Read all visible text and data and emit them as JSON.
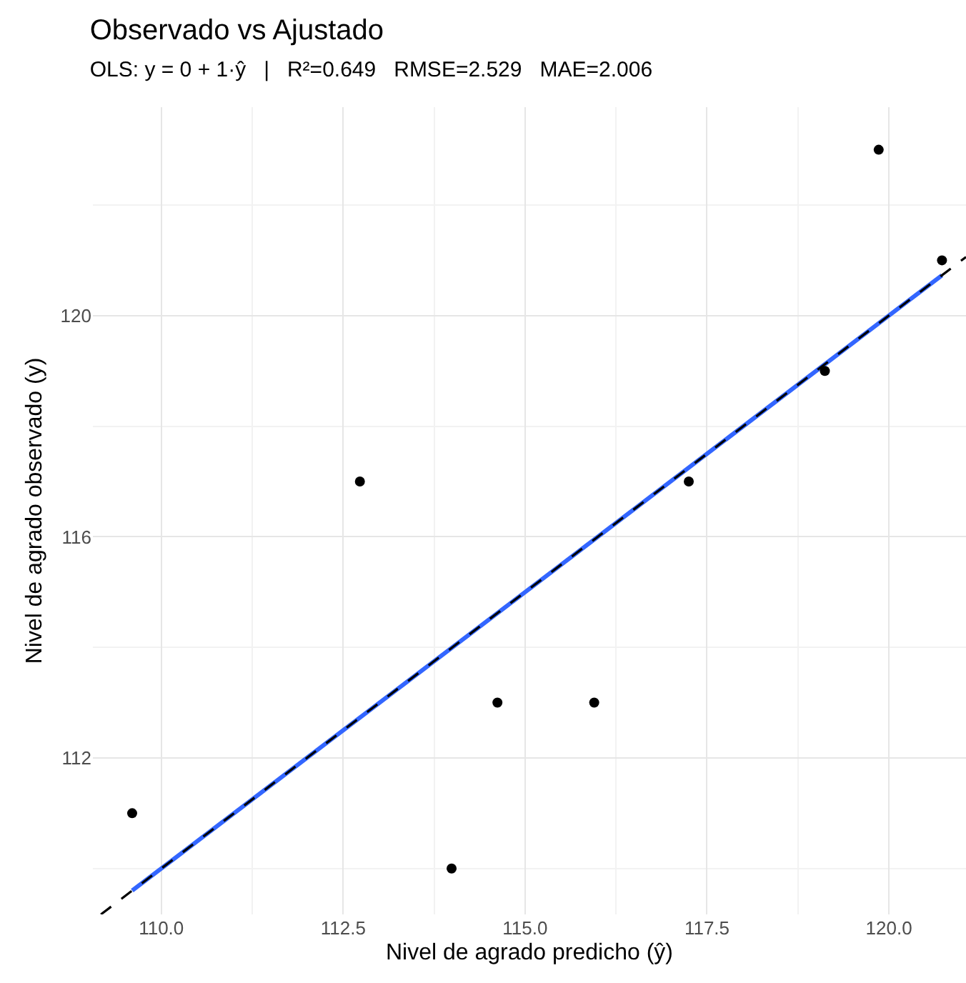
{
  "chart_data": {
    "type": "scatter",
    "title": "Observado vs Ajustado",
    "subtitle": "OLS: y = 0 + 1·ŷ   |   R²=0.649   RMSE=2.529   MAE=2.006",
    "xlabel": "Nivel de agrado predicho (ŷ)",
    "ylabel": "Nivel de agrado observado (y)",
    "xlim": [
      109.06,
      121.06
    ],
    "ylim": [
      109.17,
      123.77
    ],
    "xticks": [
      {
        "value": 110,
        "label": "110.0"
      },
      {
        "value": 112.5,
        "label": "112.5"
      },
      {
        "value": 115,
        "label": "115.0"
      },
      {
        "value": 117.5,
        "label": "117.5"
      },
      {
        "value": 120,
        "label": "120.0"
      }
    ],
    "yticks": [
      112,
      116,
      120
    ],
    "grid": true,
    "marker": "circle",
    "series": [
      {
        "type": "line",
        "color": "#3366ff",
        "x": [
          109.6,
          120.73
        ],
        "values": [
          109.6,
          120.73
        ],
        "line_style": "solid",
        "marker": "none"
      },
      {
        "type": "line",
        "color": "#000000",
        "x": [
          109.17,
          121.06
        ],
        "values": [
          109.17,
          121.06
        ],
        "line_style": "dashed",
        "marker": "none"
      },
      {
        "color": "#000000",
        "x": [
          109.6,
          112.73,
          113.99,
          114.62,
          115.95,
          117.25,
          119.12,
          119.86,
          120.73
        ],
        "values": [
          111,
          117,
          110,
          113,
          113,
          117,
          119,
          123,
          121
        ]
      }
    ]
  }
}
